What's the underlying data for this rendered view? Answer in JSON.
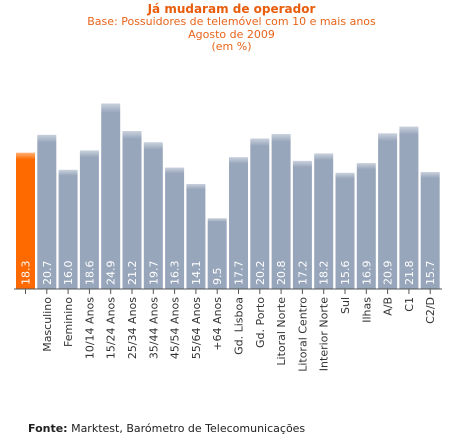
{
  "header": {
    "title": "Já mudaram de operador",
    "base": "Base: Possuidores de telemóvel com 10 e mais anos",
    "date": "Agosto de 2009",
    "unit": "(em %)"
  },
  "source": {
    "label": "Fonte:",
    "text": "Marktest, Barómetro de Telecomunicações"
  },
  "colors": {
    "highlight": "#ff6a00",
    "bar": "#98a6bb",
    "bar_top": "#c9d1dd",
    "axis": "#555555"
  },
  "chart_data": {
    "type": "bar",
    "categories": [
      "",
      "Masculino",
      "Feminino",
      "10/14 Anos",
      "15/24 Anos",
      "25/34 Anos",
      "35/44 Anos",
      "45/54 Anos",
      "55/64 Anos",
      "+64 Anos",
      "Gd. Lisboa",
      "Gd. Porto",
      "Litoral Norte",
      "Litoral Centro",
      "Interior Norte",
      "Sul",
      "Ilhas",
      "A/B",
      "C1",
      "C2/D"
    ],
    "values": [
      18.3,
      20.7,
      16.0,
      18.6,
      24.9,
      21.2,
      19.7,
      16.3,
      14.1,
      9.5,
      17.7,
      20.2,
      20.8,
      17.2,
      18.2,
      15.6,
      16.9,
      20.9,
      21.8,
      15.7
    ],
    "value_labels": [
      "18.3",
      "20.7",
      "16.0",
      "18.6",
      "24.9",
      "21.2",
      "19.7",
      "16.3",
      "14.1",
      "9.5",
      "17.7",
      "20.2",
      "20.8",
      "17.2",
      "18.2",
      "15.6",
      "16.9",
      "20.9",
      "21.8",
      "15.7"
    ],
    "highlight_index": 0,
    "ylim": [
      0,
      27
    ],
    "grid": false
  }
}
